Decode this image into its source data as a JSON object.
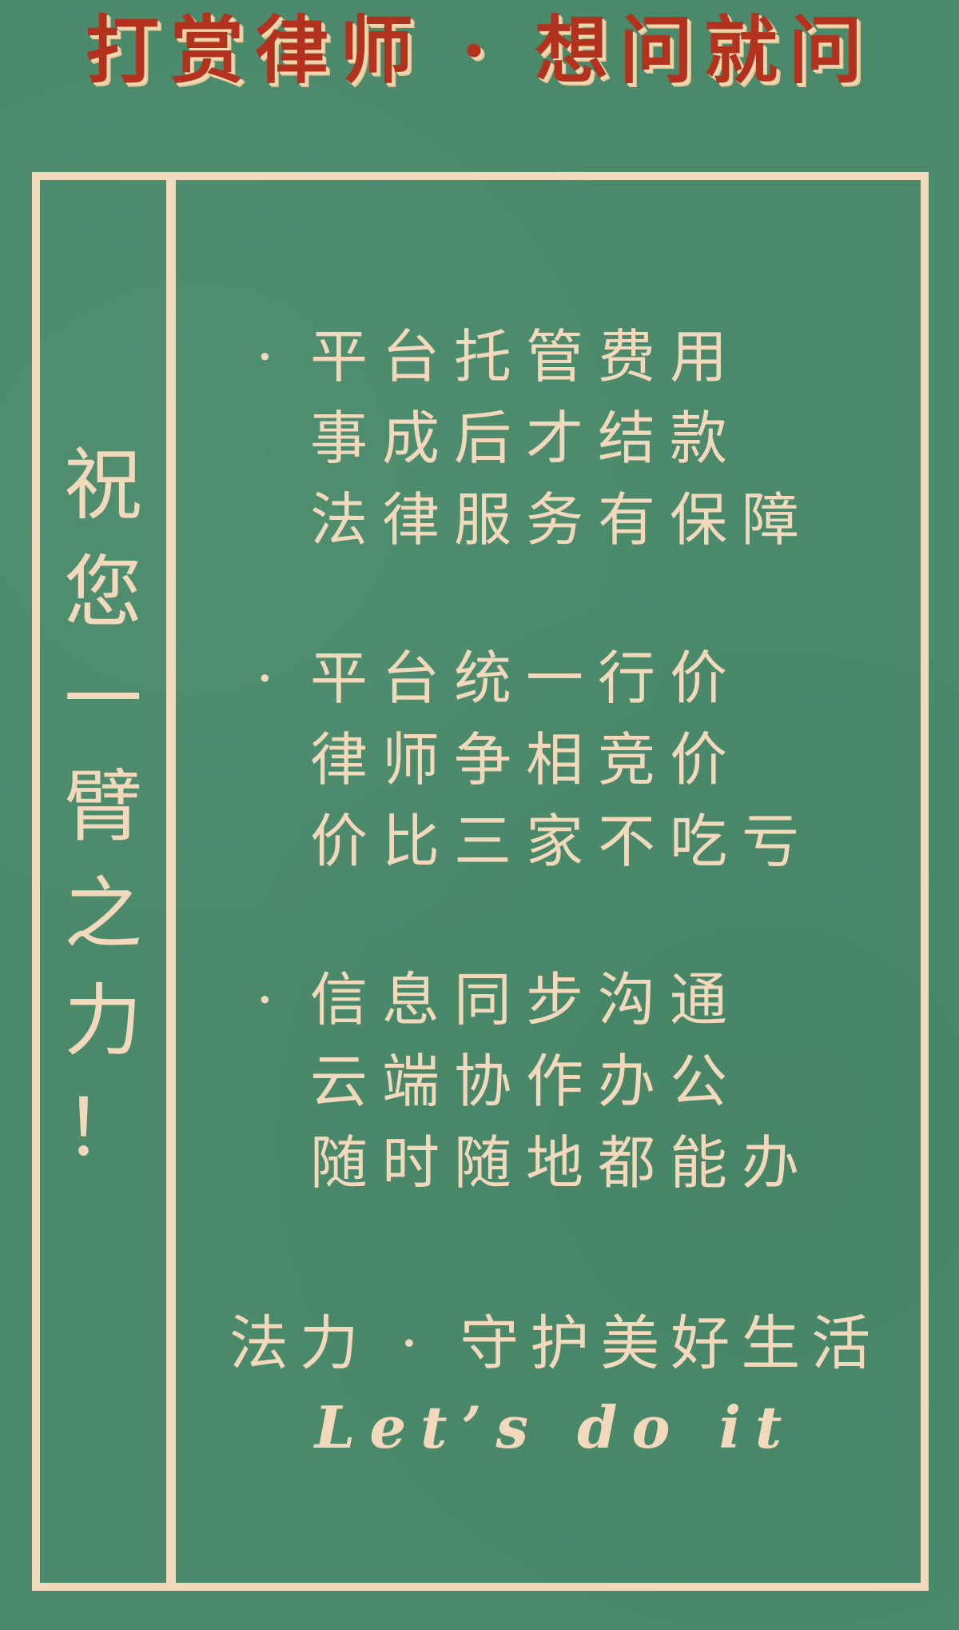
{
  "header": {
    "title": "打赏律师 · 想问就问"
  },
  "side_banner": {
    "chars": [
      "祝",
      "您",
      "一",
      "臂",
      "之",
      "力",
      "！"
    ]
  },
  "bullet_symbol": "·",
  "sections": [
    {
      "lines": [
        "平台托管费用",
        "事成后才结款",
        "法律服务有保障"
      ]
    },
    {
      "lines": [
        "平台统一行价",
        "律师争相竞价",
        "价比三家不吃亏"
      ]
    },
    {
      "lines": [
        "信息同步沟通",
        "云端协作办公",
        "随时随地都能办"
      ]
    }
  ],
  "footer": {
    "slogan": "法力 · 守护美好生活",
    "tagline": "Let’s do it"
  },
  "colors": {
    "background": "#4a8a6b",
    "frame": "#f2d9bc",
    "title": "#b3321d"
  }
}
